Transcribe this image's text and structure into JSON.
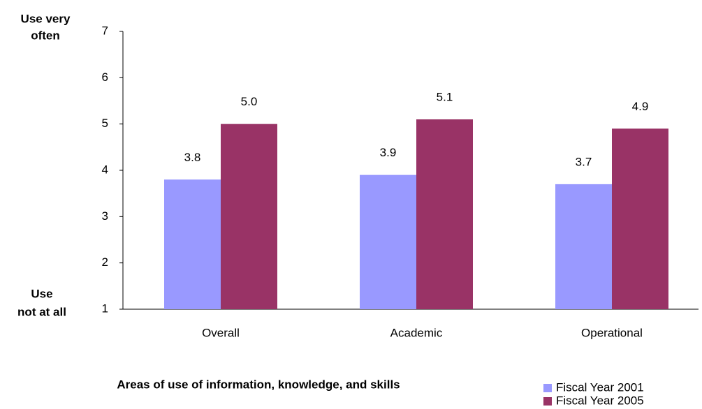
{
  "chart_data": {
    "type": "bar",
    "x_label": "Areas of use of information, knowledge, and skills",
    "y_top_label": [
      "Use very",
      "often"
    ],
    "y_bottom_label": [
      "Use",
      "not at all"
    ],
    "categories": [
      "Overall",
      "Academic",
      "Operational"
    ],
    "series": [
      {
        "name": "Fiscal Year 2001",
        "color": "#9999ff",
        "values": [
          3.8,
          3.9,
          3.7
        ],
        "value_labels": [
          "3.8",
          "3.9",
          "3.7"
        ]
      },
      {
        "name": "Fiscal Year 2005",
        "color": "#993366",
        "values": [
          5.0,
          5.1,
          4.9
        ],
        "value_labels": [
          "5.0",
          "5.1",
          "4.9"
        ]
      }
    ],
    "ylim": [
      1,
      7
    ],
    "yticks": [
      1,
      2,
      3,
      4,
      5,
      6,
      7
    ],
    "grid": false,
    "legend": "bottom-right"
  }
}
